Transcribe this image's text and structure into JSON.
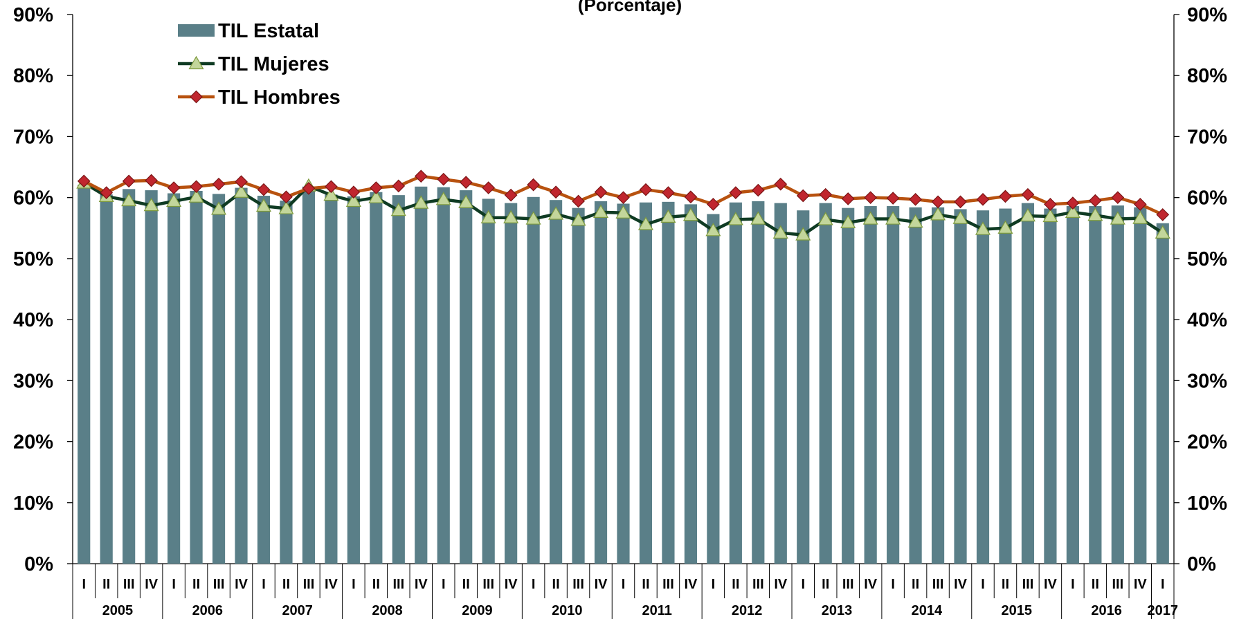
{
  "chart_data": {
    "type": "bar",
    "title": "(Porcentaje)",
    "y_ticks": [
      "0%",
      "10%",
      "20%",
      "30%",
      "40%",
      "50%",
      "60%",
      "70%",
      "80%",
      "90%"
    ],
    "ylim": [
      0,
      90
    ],
    "legend_position": "top-left",
    "quarters": [
      "I",
      "II",
      "III",
      "IV",
      "I",
      "II",
      "III",
      "IV",
      "I",
      "II",
      "III",
      "IV",
      "I",
      "II",
      "III",
      "IV",
      "I",
      "II",
      "III",
      "IV",
      "I",
      "II",
      "III",
      "IV",
      "I",
      "II",
      "III",
      "IV",
      "I",
      "II",
      "III",
      "IV",
      "I",
      "II",
      "III",
      "IV",
      "I",
      "II",
      "III",
      "IV",
      "I",
      "II",
      "III",
      "IV",
      "I",
      "II",
      "III",
      "IV",
      "I"
    ],
    "years": [
      {
        "label": "2005",
        "start": 0,
        "count": 4
      },
      {
        "label": "2006",
        "start": 4,
        "count": 4
      },
      {
        "label": "2007",
        "start": 8,
        "count": 4
      },
      {
        "label": "2008",
        "start": 12,
        "count": 4
      },
      {
        "label": "2009",
        "start": 16,
        "count": 4
      },
      {
        "label": "2010",
        "start": 20,
        "count": 4
      },
      {
        "label": "2011",
        "start": 24,
        "count": 4
      },
      {
        "label": "2012",
        "start": 28,
        "count": 4
      },
      {
        "label": "2013",
        "start": 32,
        "count": 4
      },
      {
        "label": "2014",
        "start": 36,
        "count": 4
      },
      {
        "label": "2015",
        "start": 40,
        "count": 4
      },
      {
        "label": "2016",
        "start": 44,
        "count": 4
      },
      {
        "label": "2017",
        "start": 48,
        "count": 1
      }
    ],
    "series": [
      {
        "name": "TIL Estatal",
        "kind": "bar",
        "color": "#5A7F88",
        "values": [
          62.1,
          60.5,
          61.4,
          61.2,
          60.7,
          61.1,
          60.6,
          61.6,
          60.3,
          59.5,
          61.8,
          60.5,
          60.2,
          60.9,
          60.4,
          61.8,
          61.7,
          61.2,
          59.8,
          59.1,
          60.1,
          59.6,
          58.3,
          59.4,
          59.0,
          59.2,
          59.3,
          58.9,
          57.3,
          59.2,
          59.4,
          59.1,
          57.9,
          59.1,
          58.3,
          58.6,
          58.6,
          58.4,
          58.4,
          58.1,
          57.9,
          58.2,
          59.1,
          58.2,
          58.6,
          58.6,
          58.7,
          58.4,
          55.8
        ]
      },
      {
        "name": "TIL Mujeres",
        "kind": "line",
        "color": "#0F3B23",
        "marker_color": "#C3D69B",
        "values": [
          62.4,
          60.2,
          59.5,
          58.7,
          59.4,
          60.1,
          58.1,
          60.9,
          58.6,
          58.2,
          61.9,
          60.4,
          59.4,
          60.0,
          57.9,
          59.1,
          59.7,
          59.2,
          56.7,
          56.7,
          56.5,
          57.3,
          56.3,
          57.6,
          57.5,
          55.6,
          56.8,
          57.1,
          54.6,
          56.4,
          56.5,
          54.2,
          53.9,
          56.4,
          55.9,
          56.5,
          56.5,
          56.0,
          57.2,
          56.6,
          54.8,
          55.0,
          57.0,
          56.9,
          57.6,
          57.1,
          56.5,
          56.6,
          54.2
        ]
      },
      {
        "name": "TIL Hombres",
        "kind": "line",
        "color": "#B8520F",
        "marker_color": "#C0262E",
        "values": [
          62.7,
          60.8,
          62.7,
          62.8,
          61.6,
          61.8,
          62.2,
          62.6,
          61.3,
          60.1,
          61.5,
          61.8,
          60.9,
          61.6,
          61.9,
          63.5,
          63.0,
          62.5,
          61.6,
          60.4,
          62.1,
          60.9,
          59.4,
          60.9,
          60.0,
          61.3,
          60.8,
          60.1,
          58.9,
          60.8,
          61.2,
          62.2,
          60.3,
          60.5,
          59.8,
          60.0,
          59.9,
          59.7,
          59.3,
          59.3,
          59.7,
          60.2,
          60.5,
          58.9,
          59.1,
          59.5,
          60.0,
          58.9,
          57.2
        ]
      }
    ]
  }
}
